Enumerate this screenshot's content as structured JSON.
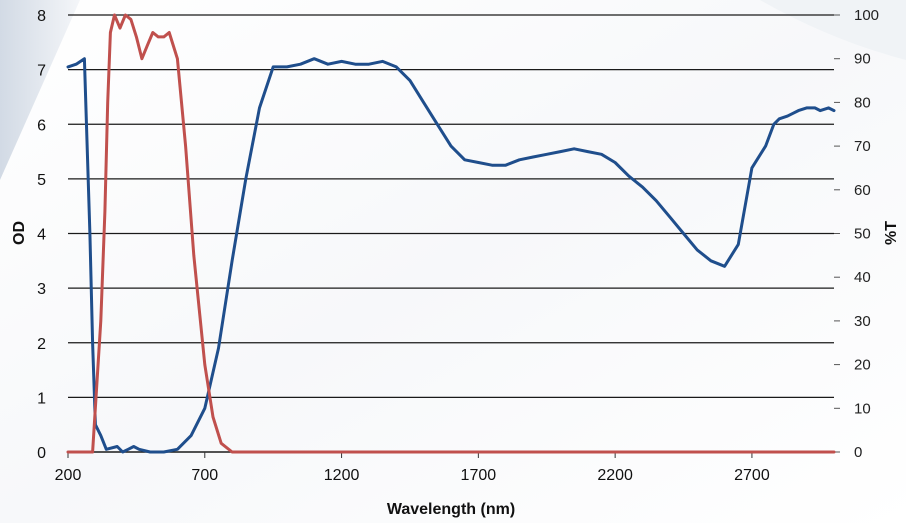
{
  "chart_data": {
    "type": "line",
    "xlabel": "Wavelength (nm)",
    "ylabel_left": "OD",
    "ylabel_right": "%T",
    "xlim": [
      200,
      3000
    ],
    "ylim_left": [
      0,
      8
    ],
    "ylim_right": [
      0,
      100
    ],
    "x_ticks": [
      200,
      700,
      1200,
      1700,
      2200,
      2700
    ],
    "y_left_ticks": [
      0,
      1,
      2,
      3,
      4,
      5,
      6,
      7,
      8
    ],
    "y_right_ticks": [
      0,
      10,
      20,
      30,
      40,
      50,
      60,
      70,
      80,
      90,
      100
    ],
    "grid": true,
    "colors": {
      "od": "#1f4e8c",
      "transmission": "#c0504d",
      "grid": "#1a1a1a"
    },
    "series": [
      {
        "axis": "left",
        "color": "#1f4e8c",
        "x": [
          200,
          230,
          260,
          280,
          290,
          300,
          320,
          340,
          380,
          400,
          420,
          440,
          460,
          500,
          550,
          600,
          650,
          700,
          750,
          800,
          850,
          900,
          950,
          1000,
          1050,
          1100,
          1150,
          1200,
          1250,
          1300,
          1350,
          1400,
          1450,
          1500,
          1550,
          1600,
          1650,
          1700,
          1750,
          1800,
          1850,
          1900,
          1950,
          2000,
          2050,
          2100,
          2150,
          2200,
          2250,
          2300,
          2350,
          2400,
          2450,
          2500,
          2550,
          2600,
          2650,
          2700,
          2750,
          2780,
          2800,
          2830,
          2850,
          2870,
          2900,
          2930,
          2950,
          2980,
          3000
        ],
        "values": [
          7.05,
          7.1,
          7.2,
          4.0,
          2.0,
          0.5,
          0.3,
          0.05,
          0.1,
          0.0,
          0.05,
          0.1,
          0.05,
          0.0,
          0.0,
          0.05,
          0.3,
          0.8,
          1.9,
          3.5,
          5.0,
          6.3,
          7.05,
          7.05,
          7.1,
          7.2,
          7.1,
          7.15,
          7.1,
          7.1,
          7.15,
          7.05,
          6.8,
          6.4,
          6.0,
          5.6,
          5.35,
          5.3,
          5.25,
          5.25,
          5.35,
          5.4,
          5.45,
          5.5,
          5.55,
          5.5,
          5.45,
          5.3,
          5.05,
          4.85,
          4.6,
          4.3,
          4.0,
          3.7,
          3.5,
          3.4,
          3.8,
          5.2,
          5.6,
          6.0,
          6.1,
          6.15,
          6.2,
          6.25,
          6.3,
          6.3,
          6.25,
          6.3,
          6.25
        ]
      },
      {
        "axis": "right",
        "color": "#c0504d",
        "x": [
          200,
          290,
          305,
          320,
          335,
          345,
          355,
          370,
          390,
          410,
          430,
          450,
          470,
          490,
          510,
          530,
          550,
          570,
          600,
          630,
          660,
          700,
          730,
          760,
          800,
          850,
          900,
          1200,
          1700,
          2200,
          2700,
          3000
        ],
        "values": [
          0,
          0,
          15,
          30,
          55,
          80,
          96,
          100,
          97,
          100,
          99,
          95,
          90,
          93,
          96,
          95,
          95,
          96,
          90,
          70,
          45,
          20,
          8,
          2,
          0,
          0,
          0,
          0,
          0,
          0,
          0,
          0
        ]
      }
    ]
  }
}
